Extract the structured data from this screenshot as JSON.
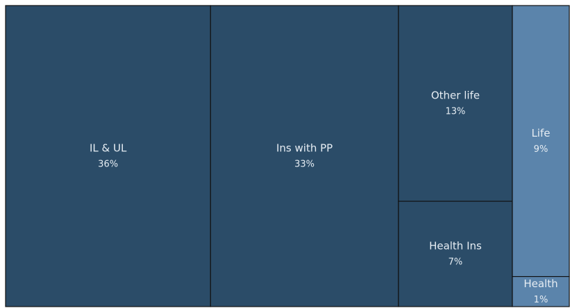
{
  "chart_data": {
    "type": "treemap",
    "categories": [
      "IL & UL",
      "Ins with PP",
      "Other life",
      "Health Ins",
      "Life",
      "Health"
    ],
    "values": [
      36,
      33,
      13,
      7,
      9,
      1
    ],
    "value_labels": [
      "36%",
      "33%",
      "13%",
      "7%",
      "9%",
      "1%"
    ],
    "colors": [
      "#2b4c68",
      "#2b4c68",
      "#2b4c68",
      "#2b4c68",
      "#5b84ab",
      "#5b84ab"
    ]
  }
}
